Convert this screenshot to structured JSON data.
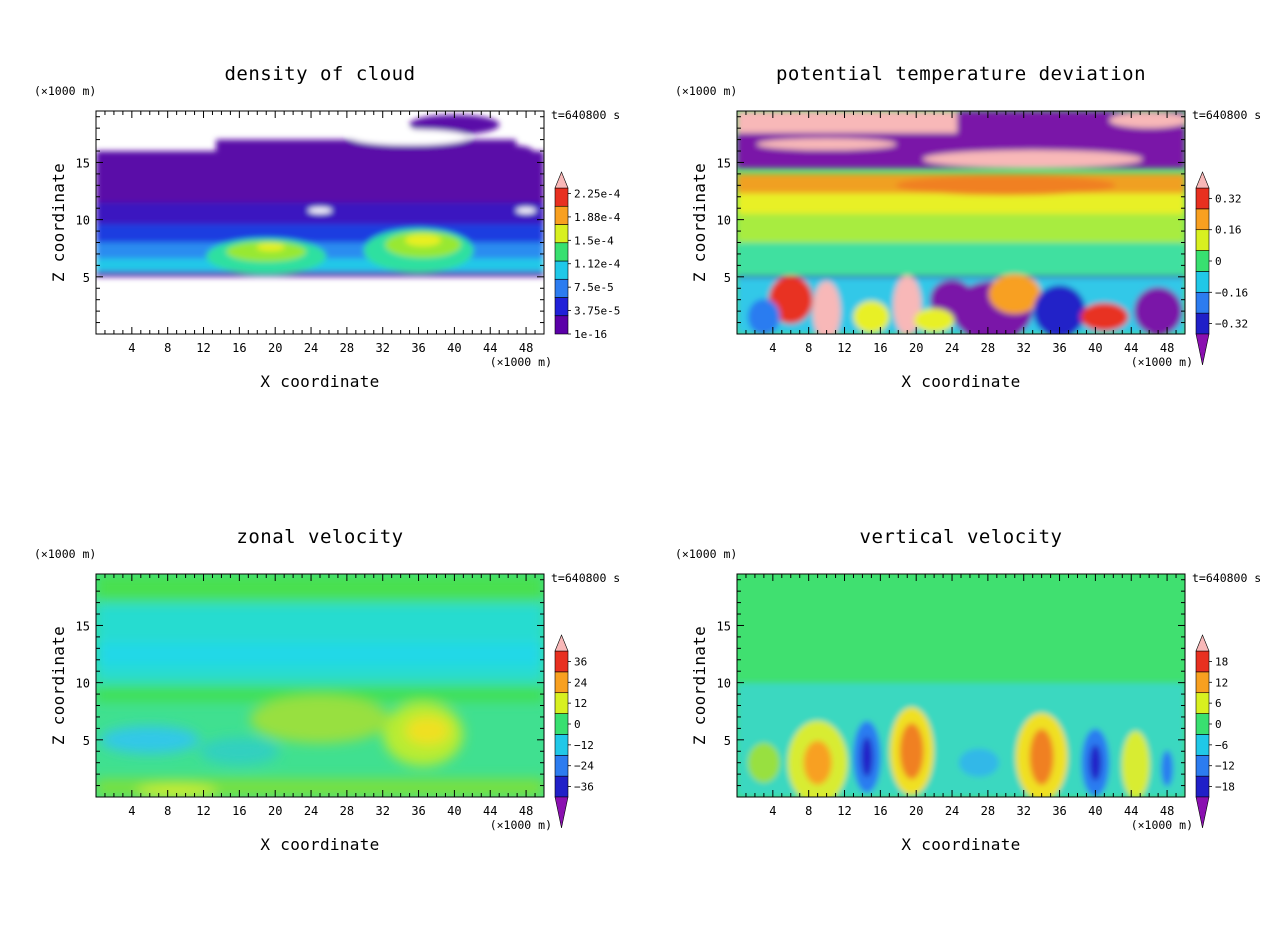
{
  "figure": {
    "common": {
      "x_axis_label": "X coordinate",
      "y_axis_label": "Z coordinate",
      "x_unit": "(×1000 m)",
      "y_unit": "(×1000 m)",
      "time_label": "t=640800 s",
      "x_ticks": [
        "4",
        "8",
        "12",
        "16",
        "20",
        "24",
        "28",
        "32",
        "36",
        "40",
        "44",
        "48"
      ],
      "y_ticks": [
        "5",
        "10",
        "15"
      ]
    }
  },
  "chart_data": [
    {
      "type": "heatmap",
      "title": "density of cloud",
      "xlabel": "X coordinate",
      "ylabel": "Z coordinate",
      "xlim": [
        0,
        50
      ],
      "ylim": [
        0,
        19.5
      ],
      "time": "t=640800 s",
      "colorbar_labels": [
        "2.25e-4",
        "1.88e-4",
        "1.5e-4",
        "1.12e-4",
        "7.5e-5",
        "3.75e-5",
        "1e-16"
      ],
      "colorbar_values": [
        0.000225,
        0.000188,
        0.00015,
        0.000112,
        7.5e-05,
        3.75e-05,
        1e-16
      ],
      "colorbar_extend": "max",
      "colormap": [
        "#5b00a8",
        "#2020d8",
        "#2c7cf0",
        "#20c8e8",
        "#38e070",
        "#d8f020",
        "#f8a020",
        "#e83020",
        "#f8b8b8"
      ]
    },
    {
      "type": "heatmap",
      "title": "potential temperature deviation",
      "xlabel": "X coordinate",
      "ylabel": "Z coordinate",
      "xlim": [
        0,
        50
      ],
      "ylim": [
        0,
        19.5
      ],
      "time": "t=640800 s",
      "colorbar_labels": [
        "0.32",
        "0.16",
        "0",
        "−0.16",
        "−0.32"
      ],
      "colorbar_values": [
        0.32,
        0.16,
        0,
        -0.16,
        -0.32
      ],
      "colorbar_extend": "both",
      "colormap": [
        "#8a10b0",
        "#2020c8",
        "#2c7cf0",
        "#20c8e8",
        "#38e070",
        "#d8f020",
        "#f8a020",
        "#e83020",
        "#f8b8b8"
      ]
    },
    {
      "type": "heatmap",
      "title": "zonal velocity",
      "xlabel": "X coordinate",
      "ylabel": "Z coordinate",
      "xlim": [
        0,
        50
      ],
      "ylim": [
        0,
        19.5
      ],
      "time": "t=640800 s",
      "colorbar_labels": [
        "36",
        "24",
        "12",
        "0",
        "−12",
        "−24",
        "−36"
      ],
      "colorbar_values": [
        36,
        24,
        12,
        0,
        -12,
        -24,
        -36
      ],
      "colorbar_extend": "both",
      "colormap": [
        "#8a10b0",
        "#2020c8",
        "#2c7cf0",
        "#20c8e8",
        "#38e070",
        "#d8f020",
        "#f8a020",
        "#e83020",
        "#f8b8b8"
      ]
    },
    {
      "type": "heatmap",
      "title": "vertical velocity",
      "xlabel": "X coordinate",
      "ylabel": "Z coordinate",
      "xlim": [
        0,
        50
      ],
      "ylim": [
        0,
        19.5
      ],
      "time": "t=640800 s",
      "colorbar_labels": [
        "18",
        "12",
        "6",
        "0",
        "−6",
        "−12",
        "−18"
      ],
      "colorbar_values": [
        18,
        12,
        6,
        0,
        -6,
        -12,
        -18
      ],
      "colorbar_extend": "both",
      "colormap": [
        "#8a10b0",
        "#2020c8",
        "#2c7cf0",
        "#20c8e8",
        "#38e070",
        "#d8f020",
        "#f8a020",
        "#e83020",
        "#f8b8b8"
      ]
    }
  ]
}
